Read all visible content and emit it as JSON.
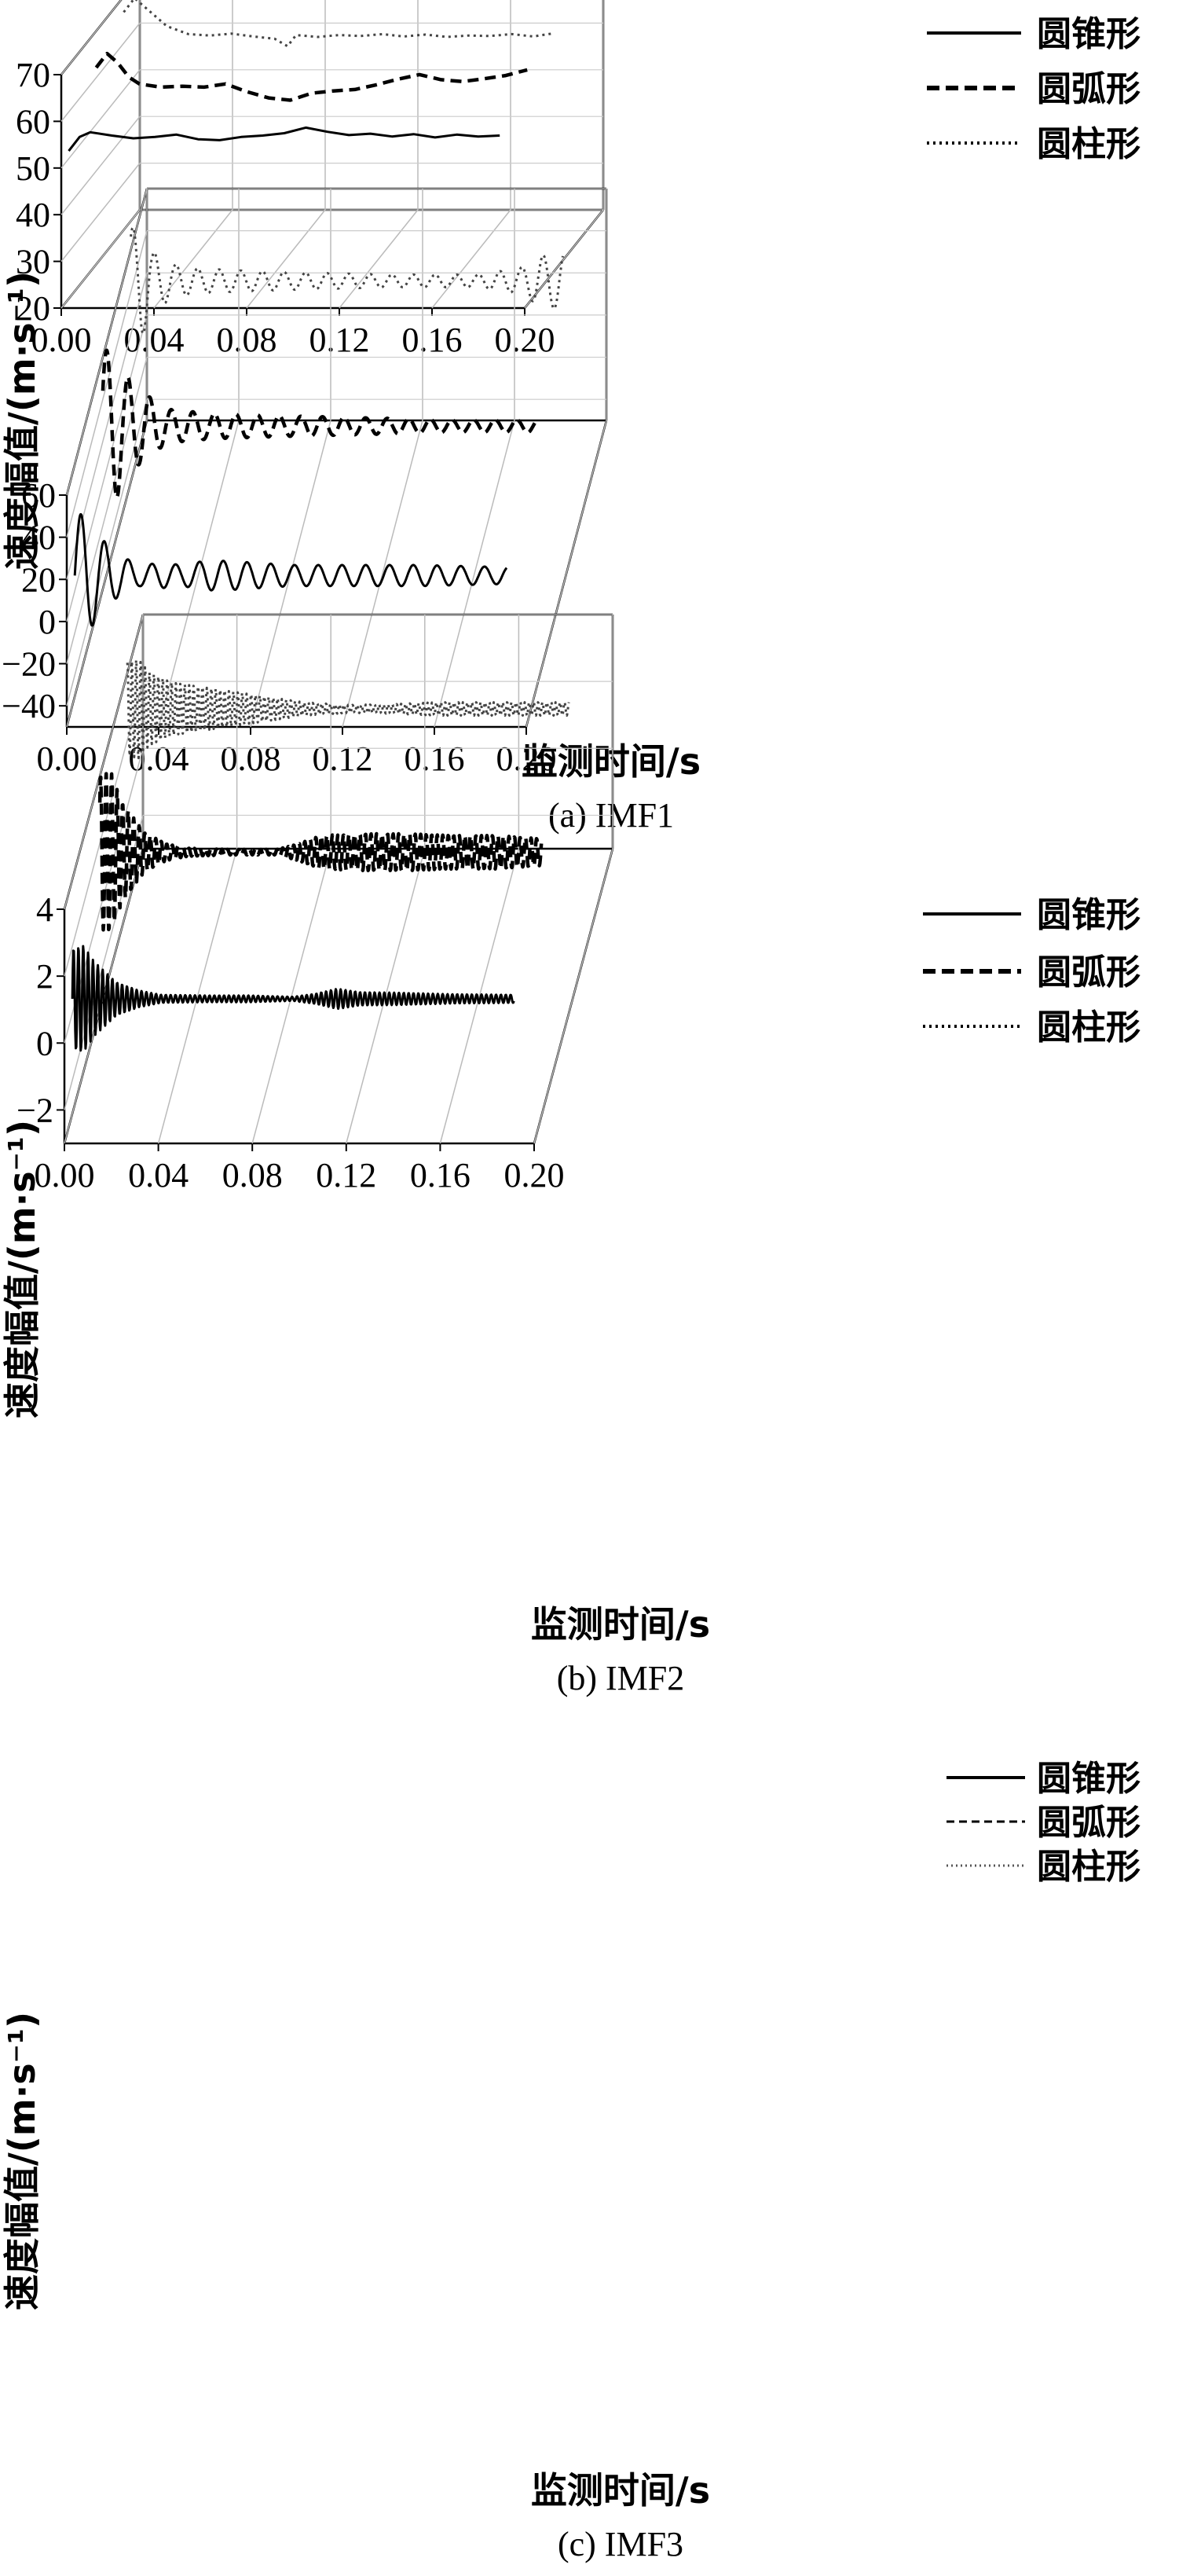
{
  "chart_data": [
    {
      "type": "line",
      "caption": "(a) IMF1",
      "xlabel": "监测时间/s",
      "ylabel": "速度幅值/(m·s⁻¹)",
      "x_ticks": [
        "0.00",
        "0.04",
        "0.08",
        "0.12",
        "0.16",
        "0.20"
      ],
      "y_ticks": [
        "20",
        "30",
        "40",
        "50",
        "60",
        "70"
      ],
      "xlim": [
        0,
        0.2
      ],
      "ylim": [
        20,
        70
      ],
      "grid": true,
      "legend_position": "top-right",
      "style": "3d-waterfall",
      "series": [
        {
          "name": "圆锥形",
          "dash": "solid",
          "x": [
            0.0,
            0.005,
            0.01,
            0.02,
            0.03,
            0.04,
            0.05,
            0.06,
            0.07,
            0.08,
            0.09,
            0.1,
            0.11,
            0.12,
            0.13,
            0.14,
            0.15,
            0.16,
            0.17,
            0.18,
            0.19,
            0.2
          ],
          "y": [
            50.5,
            53.5,
            54.5,
            53.8,
            53.2,
            53.5,
            54.0,
            53.0,
            52.8,
            53.5,
            53.8,
            54.3,
            55.5,
            54.6,
            53.9,
            54.2,
            53.6,
            54.1,
            53.4,
            54.0,
            53.6,
            53.8
          ]
        },
        {
          "name": "圆弧形",
          "dash": "dash",
          "x": [
            0.0,
            0.005,
            0.01,
            0.015,
            0.02,
            0.03,
            0.04,
            0.05,
            0.06,
            0.07,
            0.08,
            0.09,
            0.1,
            0.11,
            0.12,
            0.13,
            0.14,
            0.15,
            0.16,
            0.17,
            0.18,
            0.19,
            0.2
          ],
          "y": [
            61,
            64,
            62,
            59,
            57.5,
            56.8,
            57.0,
            56.8,
            57.5,
            55.8,
            54.5,
            54.0,
            55.5,
            56.0,
            56.3,
            57.3,
            58.5,
            59.5,
            58.4,
            58.0,
            58.6,
            59.3,
            60.5
          ]
        },
        {
          "name": "圆柱形",
          "dash": "dot",
          "x": [
            0.0,
            0.005,
            0.01,
            0.02,
            0.03,
            0.04,
            0.05,
            0.06,
            0.07,
            0.076,
            0.08,
            0.09,
            0.1,
            0.11,
            0.12,
            0.13,
            0.14,
            0.15,
            0.16,
            0.17,
            0.18,
            0.19,
            0.2
          ],
          "y": [
            65.5,
            68.5,
            66.5,
            62.5,
            60.8,
            60.5,
            60.9,
            60.3,
            59.8,
            58.2,
            60.6,
            60.2,
            60.6,
            60.4,
            60.8,
            60.3,
            60.7,
            60.2,
            60.5,
            60.4,
            60.8,
            60.3,
            61.0
          ]
        }
      ]
    },
    {
      "type": "line",
      "caption": "(b) IMF2",
      "xlabel": "监测时间/s",
      "ylabel": "速度幅值/(m·s⁻¹)",
      "x_ticks": [
        "0.00",
        "0.04",
        "0.08",
        "0.12",
        "0.16",
        "0.20"
      ],
      "y_ticks": [
        "−40",
        "−20",
        "0",
        "20",
        "40",
        "60"
      ],
      "xlim": [
        0,
        0.2
      ],
      "ylim": [
        -50,
        60
      ],
      "grid": true,
      "legend_position": "top-right",
      "style": "3d-waterfall",
      "series": [
        {
          "name": "圆锥形",
          "dash": "solid",
          "envelope": {
            "t": [
              0,
              0.005,
              0.01,
              0.02,
              0.03,
              0.04,
              0.05,
              0.06,
              0.07,
              0.1,
              0.13,
              0.16,
              0.2
            ],
            "a": [
              28,
              30,
              20,
              10,
              5,
              6,
              5,
              7,
              7,
              5,
              5,
              5,
              4
            ]
          },
          "offset": 0,
          "period": 0.011,
          "phase": 0
        },
        {
          "name": "圆弧形",
          "dash": "dash",
          "envelope": {
            "t": [
              0,
              0.005,
              0.01,
              0.02,
              0.03,
              0.05,
              0.08,
              0.12,
              0.16,
              0.2
            ],
            "a": [
              35,
              38,
              25,
              15,
              8,
              6,
              5,
              4,
              3,
              3
            ]
          },
          "offset": 20,
          "period": 0.01,
          "phase": 0.5
        },
        {
          "name": "圆柱形",
          "dash": "dot",
          "envelope": {
            "t": [
              0,
              0.005,
              0.01,
              0.02,
              0.03,
              0.05,
              0.08,
              0.12,
              0.16,
              0.18,
              0.19,
              0.2
            ],
            "a": [
              25,
              27,
              14,
              8,
              6,
              5,
              4,
              3,
              3,
              6,
              12,
              14
            ]
          },
          "offset": 38,
          "period": 0.01,
          "phase": 1.0
        }
      ]
    },
    {
      "type": "line",
      "caption": "(c) IMF3",
      "xlabel": "监测时间/s",
      "ylabel": "速度幅值/(m·s⁻¹)",
      "x_ticks": [
        "0.00",
        "0.04",
        "0.08",
        "0.12",
        "0.16",
        "0.20"
      ],
      "y_ticks": [
        "−2",
        "0",
        "2",
        "4"
      ],
      "xlim": [
        0,
        0.2
      ],
      "ylim": [
        -3,
        4
      ],
      "grid": true,
      "legend_position": "top-right",
      "style": "3d-waterfall",
      "series": [
        {
          "name": "圆锥形",
          "dash": "solid",
          "envelope": {
            "t": [
              0,
              0.005,
              0.01,
              0.02,
              0.03,
              0.04,
              0.06,
              0.08,
              0.1,
              0.11,
              0.12,
              0.13,
              0.15,
              0.17,
              0.2
            ],
            "a": [
              1.5,
              1.6,
              1.1,
              0.5,
              0.25,
              0.12,
              0.1,
              0.1,
              0.06,
              0.15,
              0.3,
              0.2,
              0.18,
              0.14,
              0.12
            ]
          },
          "offset": 0,
          "period": 0.0022,
          "phase": 0
        },
        {
          "name": "圆弧形",
          "dash": "dash",
          "envelope": {
            "t": [
              0,
              0.005,
              0.01,
              0.02,
              0.03,
              0.04,
              0.06,
              0.08,
              0.09,
              0.1,
              0.12,
              0.14,
              0.16,
              0.18,
              0.2
            ],
            "a": [
              2.3,
              2.4,
              1.5,
              0.6,
              0.25,
              0.12,
              0.08,
              0.08,
              0.25,
              0.5,
              0.55,
              0.55,
              0.5,
              0.5,
              0.4
            ]
          },
          "offset": 1.3,
          "period": 0.0025,
          "phase": 0.7
        },
        {
          "name": "圆柱形",
          "dash": "dot",
          "envelope": {
            "t": [
              0,
              0.005,
              0.01,
              0.02,
              0.03,
              0.04,
              0.06,
              0.08,
              0.1,
              0.12,
              0.14,
              0.16,
              0.18,
              0.2
            ],
            "a": [
              1.4,
              1.5,
              1.1,
              0.8,
              0.7,
              0.6,
              0.4,
              0.2,
              0.12,
              0.14,
              0.2,
              0.2,
              0.2,
              0.2
            ]
          },
          "offset": 2.5,
          "period": 0.002,
          "phase": 1.4
        }
      ]
    }
  ]
}
